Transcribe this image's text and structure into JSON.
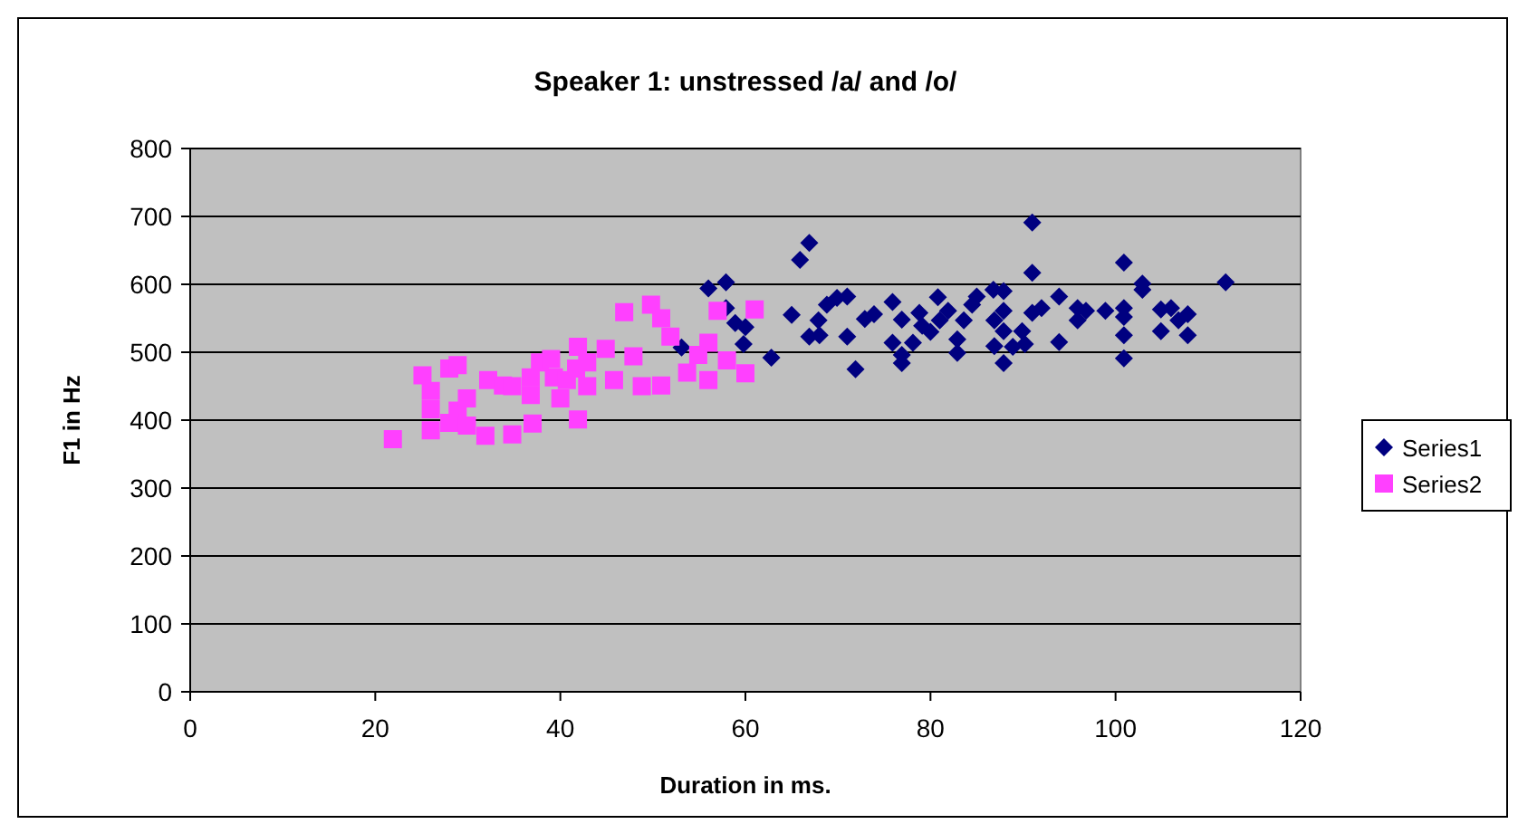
{
  "chart_data": {
    "type": "scatter",
    "title": "Speaker 1: unstressed /a/ and /o/",
    "xlabel": "Duration in ms.",
    "ylabel": "F1 in Hz",
    "xlim": [
      0,
      120
    ],
    "xticks": [
      0,
      20,
      40,
      60,
      80,
      100,
      120
    ],
    "ylim": [
      0,
      800
    ],
    "yticks": [
      0,
      100,
      200,
      300,
      400,
      500,
      600,
      700,
      800
    ],
    "grid": "y",
    "legend": "right",
    "series": [
      {
        "name": "Series1",
        "color": "#000080",
        "marker": "diamond",
        "x": [
          56.0,
          57.9,
          57.9,
          58.9,
          60.0,
          59.8,
          53.1,
          62.8,
          65.0,
          65.9,
          66.9,
          66.9,
          67.9,
          68.0,
          68.8,
          69.9,
          71.0,
          71.0,
          71.9,
          72.9,
          73.9,
          75.9,
          75.9,
          76.9,
          76.9,
          76.9,
          78.1,
          78.8,
          79.1,
          80.0,
          80.8,
          81.0,
          81.9,
          82.9,
          82.9,
          83.6,
          84.5,
          85.0,
          86.8,
          86.9,
          86.9,
          87.9,
          87.9,
          87.9,
          87.9,
          88.9,
          89.9,
          90.2,
          91.0,
          91.0,
          91.0,
          92.0,
          93.9,
          93.9,
          95.9,
          95.9,
          96.8,
          98.9,
          100.9,
          100.9,
          100.9,
          100.9,
          100.9,
          102.9,
          102.9,
          104.9,
          104.9,
          106.0,
          106.8,
          107.8,
          107.8,
          111.9
        ],
        "values": [
          594,
          603,
          565,
          543,
          537,
          512,
          507,
          492,
          555,
          636,
          661,
          523,
          547,
          525,
          570,
          580,
          582,
          523,
          475,
          549,
          556,
          574,
          514,
          548,
          496,
          484,
          514,
          558,
          539,
          530,
          581,
          547,
          561,
          519,
          499,
          547,
          570,
          582,
          592,
          547,
          509,
          590,
          561,
          531,
          484,
          508,
          531,
          512,
          691,
          617,
          558,
          565,
          582,
          515,
          565,
          547,
          561,
          561,
          632,
          565,
          552,
          525,
          491,
          601,
          592,
          563,
          531,
          565,
          547,
          556,
          525,
          603
        ]
      },
      {
        "name": "Series2",
        "color": "#ff40ff",
        "marker": "square",
        "x": [
          21.9,
          25.1,
          26.0,
          26.0,
          26.0,
          28.0,
          28.9,
          28.9,
          28.0,
          29.9,
          29.9,
          31.9,
          32.2,
          33.8,
          34.8,
          34.8,
          36.8,
          36.8,
          37.0,
          37.8,
          39.0,
          39.3,
          40.0,
          40.7,
          41.9,
          41.7,
          41.9,
          42.9,
          42.9,
          44.9,
          45.8,
          46.9,
          47.9,
          48.8,
          49.8,
          50.9,
          50.9,
          51.9,
          53.7,
          54.9,
          56.0,
          56.0,
          57.0,
          58.0,
          60.0,
          61.0
        ],
        "values": [
          372,
          466,
          443,
          416,
          385,
          476,
          481,
          414,
          396,
          432,
          392,
          377,
          459,
          451,
          450,
          379,
          463,
          437,
          395,
          485,
          490,
          463,
          432,
          459,
          508,
          476,
          401,
          485,
          450,
          505,
          459,
          559,
          494,
          450,
          570,
          451,
          550,
          523,
          470,
          496,
          514,
          459,
          561,
          488,
          469,
          563
        ]
      }
    ]
  }
}
